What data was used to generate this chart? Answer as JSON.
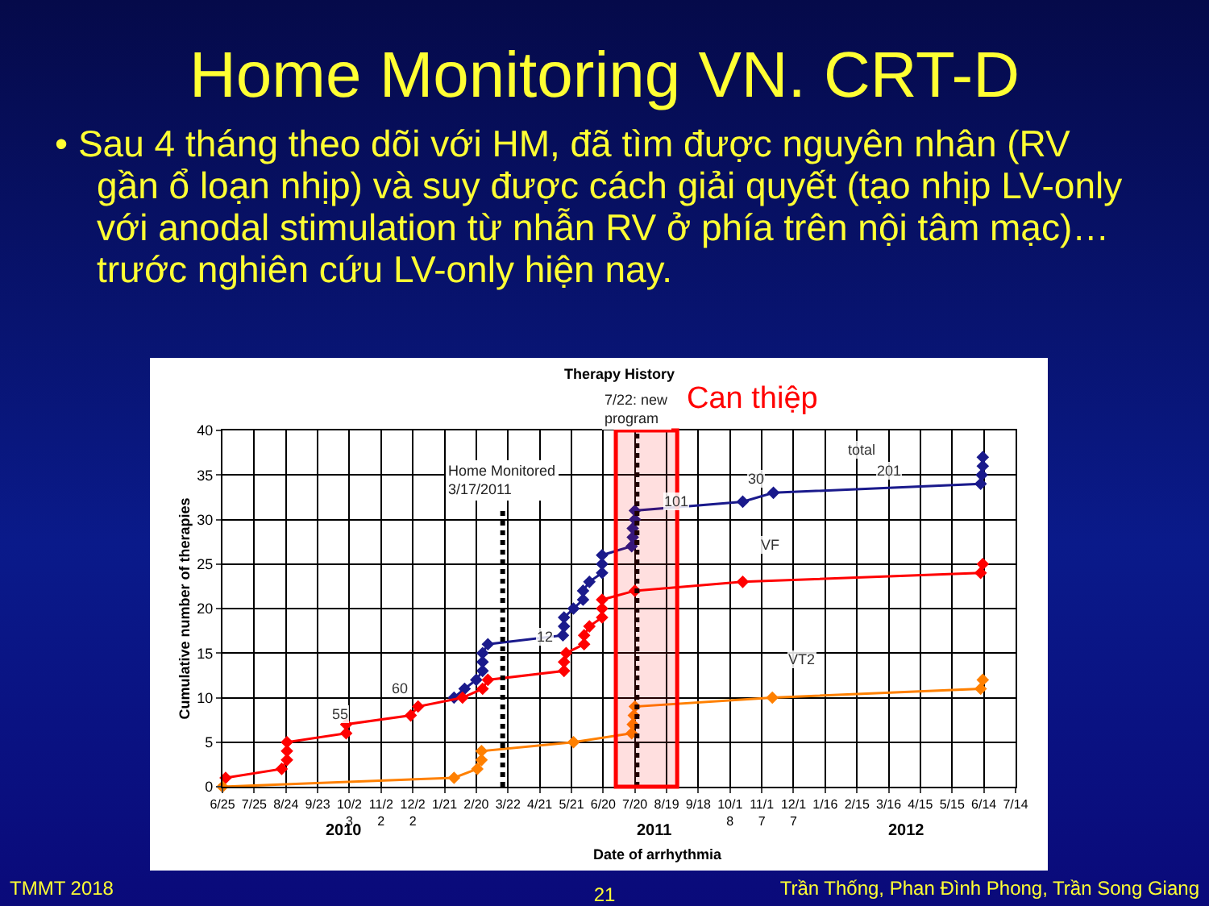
{
  "chart_data": {
    "type": "line",
    "title": "Home Monitoring VN. CRT-D",
    "subtitle": "• Sau 4 tháng theo dõi với HM, đã tìm được nguyên nhân (RV gần ổ loạn nhịp) và suy được cách giải quyết (tạo nhịp LV-only với anodal stimulation từ nhẫn RV ở phía trên nội tâm mạc)… trước nghiên cứu LV-only hiện nay.",
    "xlabel": "Date of arrhythmia",
    "ylabel": "Cumulative number of therapies",
    "xlim": [
      "2010-06-25",
      "2012-07-14"
    ],
    "xticks": [
      {
        "value": "2010-06-25",
        "label": "6/25"
      },
      {
        "value": "2010-07-25",
        "label": "7/25"
      },
      {
        "value": "2010-08-24",
        "label": "8/24"
      },
      {
        "value": "2010-09-23",
        "label": "9/23"
      },
      {
        "value": "2010-10-23",
        "label": "10/23"
      },
      {
        "value": "2010-11-22",
        "label": "11/22"
      },
      {
        "value": "2010-12-22",
        "label": "12/22"
      },
      {
        "value": "2011-01-21",
        "label": "1/21"
      },
      {
        "value": "2011-02-20",
        "label": "2/20"
      },
      {
        "value": "2011-03-22",
        "label": "3/22"
      },
      {
        "value": "2011-04-21",
        "label": "4/21"
      },
      {
        "value": "2011-05-21",
        "label": "5/21"
      },
      {
        "value": "2011-06-20",
        "label": "6/20"
      },
      {
        "value": "2011-07-20",
        "label": "7/20"
      },
      {
        "value": "2011-08-19",
        "label": "8/19"
      },
      {
        "value": "2011-09-18",
        "label": "9/18"
      },
      {
        "value": "2011-10-18",
        "label": "10/18"
      },
      {
        "value": "2011-11-17",
        "label": "11/17"
      },
      {
        "value": "2011-12-17",
        "label": "12/17"
      },
      {
        "value": "2012-01-16",
        "label": "1/16"
      },
      {
        "value": "2012-02-15",
        "label": "2/15"
      },
      {
        "value": "2012-03-16",
        "label": "3/16"
      },
      {
        "value": "2012-04-15",
        "label": "4/15"
      },
      {
        "value": "2012-05-15",
        "label": "5/15"
      },
      {
        "value": "2012-06-14",
        "label": "6/14"
      },
      {
        "value": "2012-07-14",
        "label": "7/14"
      }
    ],
    "ylim": [
      0,
      40
    ],
    "yticks": [
      0,
      5,
      10,
      15,
      20,
      25,
      30,
      35,
      40
    ],
    "grid": true,
    "marker": "diamond",
    "series": [
      {
        "color": "#1a1a8c",
        "x": [
          "2011-01-30",
          "2011-02-09",
          "2011-02-20",
          "2011-02-26",
          "2011-02-26",
          "2011-02-26",
          "2011-03-03",
          "2011-05-13",
          "2011-05-14",
          "2011-05-14",
          "2011-05-23",
          "2011-06-01",
          "2011-06-01",
          "2011-06-07",
          "2011-06-19",
          "2011-06-19",
          "2011-06-19",
          "2011-07-17",
          "2011-07-18",
          "2011-07-18",
          "2011-07-20",
          "2011-07-20",
          "2011-10-30",
          "2011-11-28",
          "2012-06-11",
          "2012-06-12",
          "2012-06-13",
          "2012-06-13"
        ],
        "values": [
          10,
          11,
          12,
          13,
          14,
          15,
          16,
          17,
          18,
          19,
          20,
          21,
          22,
          23,
          24,
          25,
          26,
          27,
          28,
          29,
          30,
          31,
          32,
          33,
          34,
          35,
          36,
          37
        ]
      },
      {
        "color": "#ff0000",
        "x": [
          "2010-06-28",
          "2010-08-20",
          "2010-08-25",
          "2010-08-25",
          "2010-08-25",
          "2010-10-20",
          "2010-10-20",
          "2010-12-20",
          "2010-12-27",
          "2011-02-07",
          "2011-02-26",
          "2011-03-03",
          "2011-05-14",
          "2011-05-14",
          "2011-05-16",
          "2011-06-02",
          "2011-06-02",
          "2011-06-07",
          "2011-06-19",
          "2011-06-19",
          "2011-06-19",
          "2011-07-20",
          "2011-10-30",
          "2012-06-11",
          "2012-06-13"
        ],
        "values": [
          1,
          2,
          3,
          4,
          5,
          6,
          7,
          8,
          9,
          10,
          11,
          12,
          13,
          14,
          15,
          16,
          17,
          18,
          19,
          20,
          21,
          22,
          23,
          24,
          25
        ]
      },
      {
        "color": "#ff8000",
        "x": [
          "2010-06-25",
          "2011-01-30",
          "2011-02-21",
          "2011-02-25",
          "2011-02-25",
          "2011-05-23",
          "2011-07-17",
          "2011-07-18",
          "2011-07-19",
          "2011-07-20",
          "2011-11-27",
          "2012-06-11",
          "2012-06-13"
        ],
        "values": [
          0,
          1,
          2,
          3,
          4,
          5,
          6,
          7,
          8,
          9,
          10,
          11,
          12
        ]
      }
    ],
    "ref_lines": [
      {
        "axis": "x",
        "value": "2011-03-17",
        "label": "Home Monitored 3/17/2011",
        "color": "#000000",
        "line_style": "dotted"
      },
      {
        "axis": "x",
        "value": "2011-07-22",
        "label": "7/22: new program",
        "color": "#000000",
        "line_style": "dotted"
      }
    ],
    "bands": [
      {
        "axis": "x",
        "from": "2011-07-02",
        "to": "2011-08-29",
        "label": "Can thiệp",
        "color": "#ff0000"
      }
    ],
    "annotations": [
      "Therapy History",
      "TMMT 2018",
      "21",
      "Trần Thống, Phan Đình Phong, Trần Song Giang",
      "2010",
      "2011",
      "2012",
      "55",
      "60",
      "12",
      "101",
      "30",
      "201",
      "total",
      "VF",
      "VT2"
    ]
  }
}
